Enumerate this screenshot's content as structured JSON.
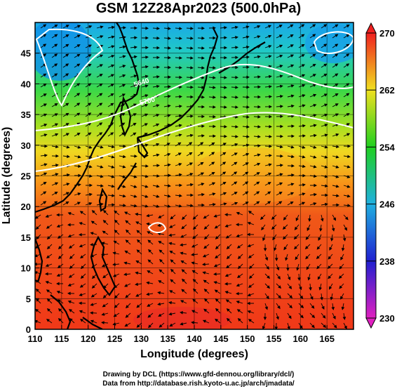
{
  "title": "GSM 12Z28Apr2023 (500.0hPa)",
  "credits": {
    "line1": "Drawing by DCL (https://www.gfd-dennou.org/library/dcl/)",
    "line2": "Data from http://database.rish.kyoto-u.ac.jp/arch/jmadata/"
  },
  "map": {
    "xlabel": "Longitude (degrees)",
    "ylabel": "Latitude  (degrees)",
    "lon_range": [
      110,
      170
    ],
    "lat_range": [
      0,
      50
    ],
    "lon_ticks": [
      "110",
      "115",
      "120",
      "125",
      "130",
      "135",
      "140",
      "145",
      "150",
      "155",
      "160",
      "165"
    ],
    "lat_ticks": [
      "0",
      "5",
      "10",
      "15",
      "20",
      "25",
      "30",
      "35",
      "40",
      "45"
    ],
    "contour_labels": [
      "5640",
      "5700"
    ]
  },
  "colorbar": {
    "labels": [
      "230",
      "238",
      "246",
      "254",
      "262",
      "270"
    ],
    "min": 230,
    "max": 270,
    "colors": [
      "#e020c0",
      "#2020d0",
      "#20b0e0",
      "#20d020",
      "#f0e020",
      "#f02020"
    ]
  }
}
